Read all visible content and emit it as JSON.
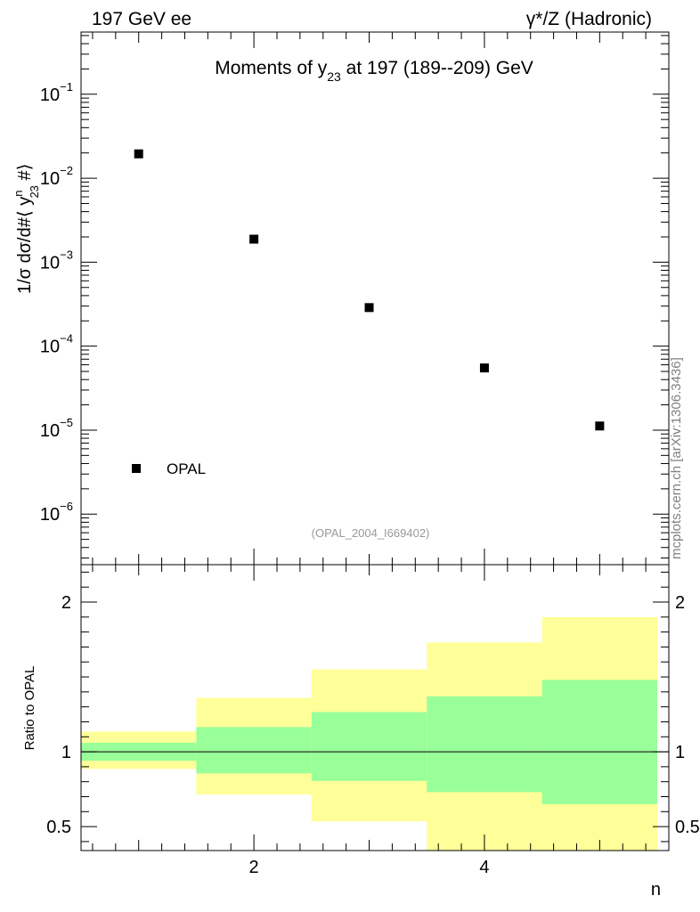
{
  "header": {
    "left_label": "197 GeV ee",
    "right_label": "γ*/Z (Hadronic)"
  },
  "watermark": "mcplots.cern.ch [arXiv:1306.3436]",
  "chart_data": [
    {
      "type": "scatter",
      "panel": "main",
      "title_prefix": "Moments of y",
      "title_sub": "23",
      "title_suffix": " at 197 (189--209) GeV",
      "ylabel_prefix": "1/σ  dσ/d#⟨ y",
      "ylabel_sup": "n",
      "ylabel_sub": "23",
      "ylabel_suffix": " #⟩",
      "yscale": "log",
      "ylim": [
        2.5e-07,
        0.55
      ],
      "xlim": [
        0.5,
        5.6
      ],
      "y_tick_labels": [
        {
          "mant": "10",
          "exp": "−1",
          "value": 0.1
        },
        {
          "mant": "10",
          "exp": "−2",
          "value": 0.01
        },
        {
          "mant": "10",
          "exp": "−3",
          "value": 0.001
        },
        {
          "mant": "10",
          "exp": "−4",
          "value": 0.0001
        },
        {
          "mant": "10",
          "exp": "−5",
          "value": 1e-05
        },
        {
          "mant": "10",
          "exp": "−6",
          "value": 1e-06
        }
      ],
      "series": [
        {
          "name": "OPAL",
          "marker": "square",
          "color": "#000000",
          "x": [
            1,
            2,
            3,
            4,
            5
          ],
          "y": [
            0.0195,
            0.00188,
            0.000288,
            5.5e-05,
            1.12e-05
          ]
        }
      ],
      "legend": {
        "label": "OPAL",
        "position": "bottom-left"
      },
      "annotation": "(OPAL_2004_I669402)"
    },
    {
      "type": "area",
      "panel": "ratio",
      "ylabel": "Ratio to OPAL",
      "xlabel": "n",
      "ylim": [
        0.34,
        2.25
      ],
      "xlim": [
        0.5,
        5.6
      ],
      "x_ticks": [
        2,
        4
      ],
      "x_tick_labels": [
        "2",
        "4"
      ],
      "y_ticks": [
        0.5,
        1,
        2
      ],
      "y_tick_labels": [
        "0.5",
        "1",
        "2"
      ],
      "reference_line": 1,
      "bands": {
        "x_edges": [
          0.5,
          1.5,
          2.5,
          3.5,
          4.5,
          5.5
        ],
        "outer_color": "#ffff99",
        "inner_color": "#99ff99",
        "outer": [
          {
            "lo": 0.885,
            "hi": 1.135
          },
          {
            "lo": 0.715,
            "hi": 1.36
          },
          {
            "lo": 0.535,
            "hi": 1.55
          },
          {
            "lo": 0.34,
            "hi": 1.73
          },
          {
            "lo": 0.34,
            "hi": 1.9
          }
        ],
        "inner": [
          {
            "lo": 0.94,
            "hi": 1.06
          },
          {
            "lo": 0.855,
            "hi": 1.165
          },
          {
            "lo": 0.805,
            "hi": 1.265
          },
          {
            "lo": 0.73,
            "hi": 1.37
          },
          {
            "lo": 0.65,
            "hi": 1.48
          }
        ]
      }
    }
  ]
}
